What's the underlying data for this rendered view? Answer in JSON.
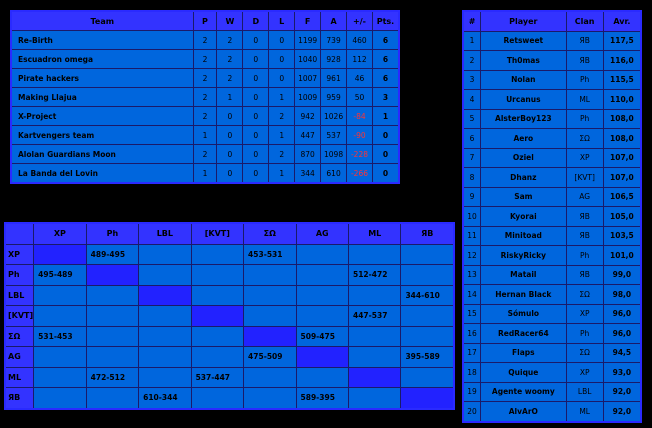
{
  "standings": {
    "headers": [
      "Team",
      "P",
      "W",
      "D",
      "L",
      "F",
      "A",
      "+/-",
      "Pts."
    ],
    "rows": [
      {
        "team": "Re-Birth",
        "p": "2",
        "w": "2",
        "d": "0",
        "l": "0",
        "f": "1199",
        "a": "739",
        "diff": "460",
        "pts": "6",
        "neg": false
      },
      {
        "team": "Escuadron omega",
        "p": "2",
        "w": "2",
        "d": "0",
        "l": "0",
        "f": "1040",
        "a": "928",
        "diff": "112",
        "pts": "6",
        "neg": false
      },
      {
        "team": "Pirate hackers",
        "p": "2",
        "w": "2",
        "d": "0",
        "l": "0",
        "f": "1007",
        "a": "961",
        "diff": "46",
        "pts": "6",
        "neg": false
      },
      {
        "team": "Making Llajua",
        "p": "2",
        "w": "1",
        "d": "0",
        "l": "1",
        "f": "1009",
        "a": "959",
        "diff": "50",
        "pts": "3",
        "neg": false
      },
      {
        "team": "X-Project",
        "p": "2",
        "w": "0",
        "d": "0",
        "l": "2",
        "f": "942",
        "a": "1026",
        "diff": "-84",
        "pts": "1",
        "neg": true
      },
      {
        "team": "Kartvengers team",
        "p": "1",
        "w": "0",
        "d": "0",
        "l": "1",
        "f": "447",
        "a": "537",
        "diff": "-90",
        "pts": "0",
        "neg": true
      },
      {
        "team": "Alolan Guardians Moon",
        "p": "2",
        "w": "0",
        "d": "0",
        "l": "2",
        "f": "870",
        "a": "1098",
        "diff": "-228",
        "pts": "0",
        "neg": true
      },
      {
        "team": "La Banda del Lovin",
        "p": "1",
        "w": "0",
        "d": "0",
        "l": "1",
        "f": "344",
        "a": "610",
        "diff": "-266",
        "pts": "0",
        "neg": true
      }
    ]
  },
  "players": {
    "headers": [
      "#",
      "Player",
      "Clan",
      "Avr."
    ],
    "rows": [
      {
        "n": "1",
        "player": "Retsweet",
        "clan": "ЯB",
        "avr": "117,5"
      },
      {
        "n": "2",
        "player": "Th0mas",
        "clan": "ЯB",
        "avr": "116,0"
      },
      {
        "n": "3",
        "player": "Nolan",
        "clan": "Ph",
        "avr": "115,5"
      },
      {
        "n": "4",
        "player": "Urcanus",
        "clan": "ML",
        "avr": "110,0"
      },
      {
        "n": "5",
        "player": "AlsterBoy123",
        "clan": "Ph",
        "avr": "108,0"
      },
      {
        "n": "6",
        "player": "Aero",
        "clan": "ΣΩ",
        "avr": "108,0"
      },
      {
        "n": "7",
        "player": "Oziel",
        "clan": "XP",
        "avr": "107,0"
      },
      {
        "n": "8",
        "player": "Dhanz",
        "clan": "[KVT]",
        "avr": "107,0"
      },
      {
        "n": "9",
        "player": "Sam",
        "clan": "AG",
        "avr": "106,5"
      },
      {
        "n": "10",
        "player": "Kyorai",
        "clan": "ЯB",
        "avr": "105,0"
      },
      {
        "n": "11",
        "player": "Minitoad",
        "clan": "ЯB",
        "avr": "103,5"
      },
      {
        "n": "12",
        "player": "RiskyRicky",
        "clan": "Ph",
        "avr": "101,0"
      },
      {
        "n": "13",
        "player": "Matail",
        "clan": "ЯB",
        "avr": "99,0"
      },
      {
        "n": "14",
        "player": "Hernan Black",
        "clan": "ΣΩ",
        "avr": "98,0"
      },
      {
        "n": "15",
        "player": "Sómulo",
        "clan": "XP",
        "avr": "96,0"
      },
      {
        "n": "16",
        "player": "RedRacer64",
        "clan": "Ph",
        "avr": "96,0"
      },
      {
        "n": "17",
        "player": "Flaps",
        "clan": "ΣΩ",
        "avr": "94,5"
      },
      {
        "n": "18",
        "player": "Quique",
        "clan": "XP",
        "avr": "93,0"
      },
      {
        "n": "19",
        "player": "Agente woomy",
        "clan": "LBL",
        "avr": "92,0"
      },
      {
        "n": "20",
        "player": "AlvArO",
        "clan": "ML",
        "avr": "92,0"
      }
    ]
  },
  "matrix": {
    "corner": "",
    "columns": [
      "XP",
      "Ph",
      "LBL",
      "[KVT]",
      "ΣΩ",
      "AG",
      "ML",
      "ЯB"
    ],
    "rows": [
      {
        "label": "XP",
        "cells": [
          "",
          "489-495",
          "",
          "",
          "453-531",
          "",
          "",
          ""
        ]
      },
      {
        "label": "Ph",
        "cells": [
          "495-489",
          "",
          "",
          "",
          "",
          "",
          "512-472",
          ""
        ]
      },
      {
        "label": "LBL",
        "cells": [
          "",
          "",
          "",
          "",
          "",
          "",
          "",
          "344-610"
        ]
      },
      {
        "label": "[KVT]",
        "cells": [
          "",
          "",
          "",
          "",
          "",
          "",
          "447-537",
          ""
        ]
      },
      {
        "label": "ΣΩ",
        "cells": [
          "531-453",
          "",
          "",
          "",
          "",
          "509-475",
          "",
          ""
        ]
      },
      {
        "label": "AG",
        "cells": [
          "",
          "",
          "",
          "",
          "475-509",
          "",
          "",
          "395-589"
        ]
      },
      {
        "label": "ML",
        "cells": [
          "",
          "472-512",
          "",
          "537-447",
          "",
          "",
          "",
          ""
        ]
      },
      {
        "label": "ЯB",
        "cells": [
          "",
          "",
          "610-344",
          "",
          "",
          "589-395",
          "",
          ""
        ]
      }
    ]
  },
  "colors": {
    "background": "#000000",
    "header": "#3333ff",
    "cell": "#0066dd",
    "diagonal": "#2222ff",
    "negative": "#ff3333"
  }
}
